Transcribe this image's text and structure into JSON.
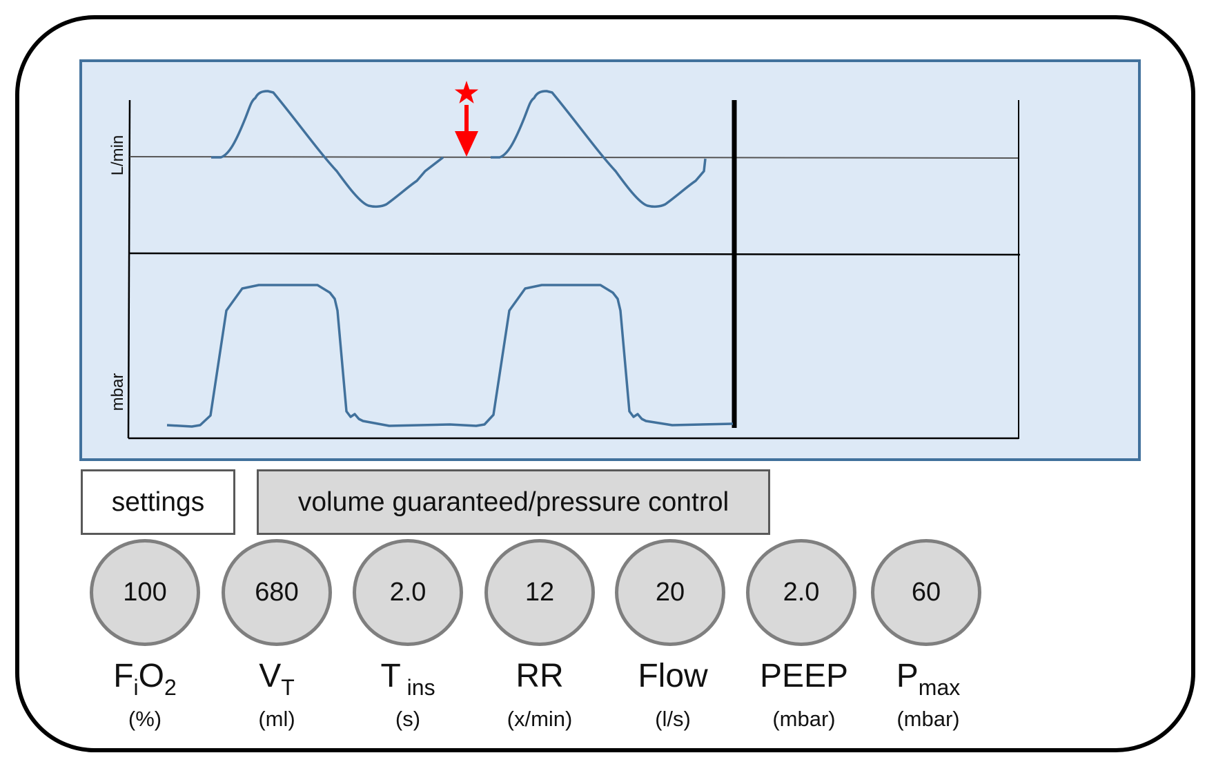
{
  "graph": {
    "flow_axis_label": "L/min",
    "pressure_axis_label": "mbar"
  },
  "colors": {
    "panel_fill": "#dde9f6",
    "panel_border": "#41719c",
    "trace": "#41719c",
    "marker": "#ff0000",
    "knob_fill": "#d9d9d9",
    "knob_border": "#7f7f7f",
    "mode_fill": "#d9d9d9"
  },
  "settings_label": "settings",
  "mode_label": "volume guaranteed/pressure control",
  "parameters": [
    {
      "main": "F",
      "sub1": "i",
      "main2": "O",
      "sub2": "2",
      "unit": "(%)",
      "value": "100"
    },
    {
      "main": "V",
      "sub1": "T",
      "main2": "",
      "sub2": "",
      "unit": "(ml)",
      "value": "680"
    },
    {
      "main": "T",
      "sub1": " ins",
      "main2": "",
      "sub2": "",
      "unit": "(s)",
      "value": "2.0"
    },
    {
      "main": "RR",
      "sub1": "",
      "main2": "",
      "sub2": "",
      "unit": "(x/min)",
      "value": "12"
    },
    {
      "main": "Flow",
      "sub1": "",
      "main2": "",
      "sub2": "",
      "unit": "(l/s)",
      "value": "20"
    },
    {
      "main": "PEEP",
      "sub1": "",
      "main2": "",
      "sub2": "",
      "unit": "(mbar)",
      "value": "2.0"
    },
    {
      "main": "P",
      "sub1": "max",
      "main2": "",
      "sub2": "",
      "unit": "(mbar)",
      "value": "60"
    }
  ]
}
